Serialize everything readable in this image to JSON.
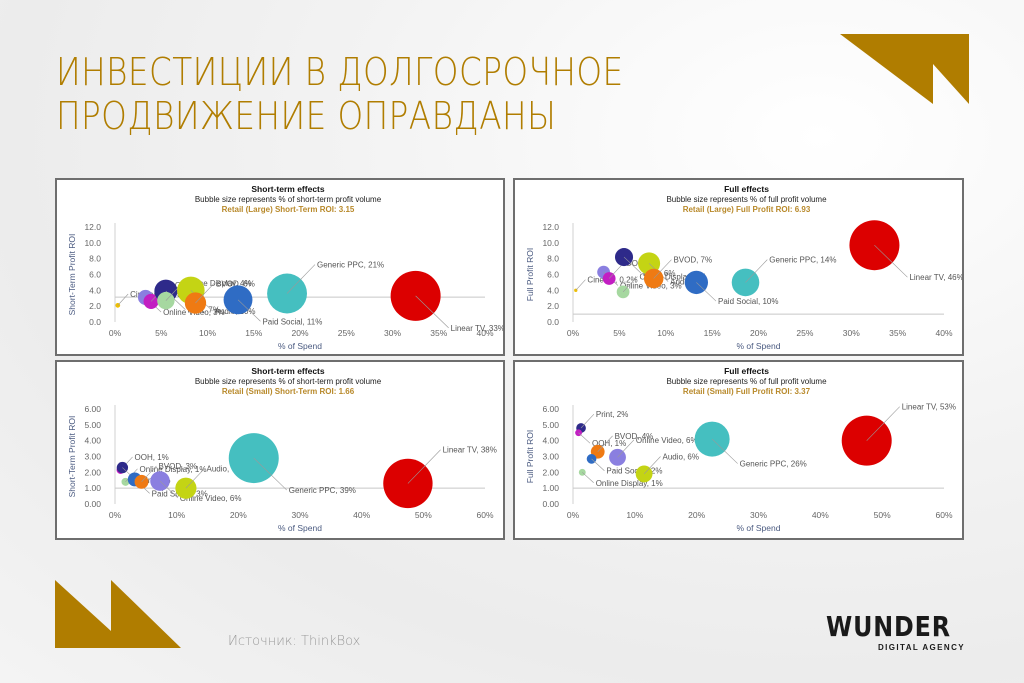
{
  "page": {
    "title_lines": [
      "ИНВЕСТИЦИИ В ДОЛГОСРОЧНОЕ",
      "ПРОДВИЖЕНИЕ ОПРАВДАНЫ"
    ],
    "source": "Источник: ThinkBox",
    "logo": {
      "main": "WUNDER",
      "sub": "DIGITAL AGENCY"
    },
    "accent_color": "#b07d00"
  },
  "chart_data": [
    {
      "type": "scatter",
      "variant": "bubble",
      "title": "Short-term effects",
      "subtitle": "Bubble size represents % of short-term profit volume",
      "highlight": "Retail (Large) Short-Term ROI: 3.15",
      "xlabel": "% of Spend",
      "ylabel": "Short-Term Profit ROI",
      "xlim": [
        0,
        40
      ],
      "ylim": [
        0,
        12
      ],
      "xticks": [
        "0%",
        "5%",
        "10%",
        "15%",
        "20%",
        "25%",
        "30%",
        "35%",
        "40%"
      ],
      "yticks": [
        "0.0",
        "2.0",
        "4.0",
        "6.0",
        "8.0",
        "10.0",
        "12.0"
      ],
      "ref_line_y": 3.15,
      "points": [
        {
          "label": "Cinema, 0.3%",
          "x": 0.3,
          "y": 2.1,
          "size": 0.3,
          "color": "#f0c000"
        },
        {
          "label": "Online Video, 3%",
          "x": 3.3,
          "y": 3.1,
          "size": 3,
          "color": "#8a7fe0"
        },
        {
          "label": "OOH, 3%",
          "x": 3.9,
          "y": 2.6,
          "size": 3,
          "color": "#c21fc2"
        },
        {
          "label": "Print, 7%",
          "x": 5.5,
          "y": 3.9,
          "size": 7,
          "color": "#2e2a8a"
        },
        {
          "label": "Online Display, 4%",
          "x": 5.5,
          "y": 2.7,
          "size": 4,
          "color": "#a6d8a0"
        },
        {
          "label": "Audio, 10%",
          "x": 8.2,
          "y": 4.0,
          "size": 10,
          "color": "#c4d414"
        },
        {
          "label": "BVOD, 6%",
          "x": 8.7,
          "y": 2.4,
          "size": 6,
          "color": "#ef7a13"
        },
        {
          "label": "Paid Social, 11%",
          "x": 13.3,
          "y": 2.8,
          "size": 11,
          "color": "#2f6cc4"
        },
        {
          "label": "Generic PPC, 21%",
          "x": 18.6,
          "y": 3.6,
          "size": 21,
          "color": "#45bfc0"
        },
        {
          "label": "Linear TV, 33%",
          "x": 32.5,
          "y": 3.3,
          "size": 33,
          "color": "#dc0000"
        }
      ]
    },
    {
      "type": "scatter",
      "variant": "bubble",
      "title": "Full effects",
      "subtitle": "Bubble size represents % of full profit volume",
      "highlight": "Retail (Large) Full Profit ROI: 6.93",
      "xlabel": "% of Spend",
      "ylabel": "Full Profit ROI",
      "xlim": [
        0,
        40
      ],
      "ylim": [
        0,
        12
      ],
      "xticks": [
        "0%",
        "5%",
        "10%",
        "15%",
        "20%",
        "25%",
        "30%",
        "35%",
        "40%"
      ],
      "yticks": [
        "0.0",
        "2.0",
        "4.0",
        "6.0",
        "8.0",
        "10.0",
        "12.0"
      ],
      "ref_line_y": 1.0,
      "points": [
        {
          "label": "Cinema, 0.2%",
          "x": 0.3,
          "y": 4.0,
          "size": 0.2,
          "color": "#f0c000"
        },
        {
          "label": "Online Video, 3%",
          "x": 3.3,
          "y": 6.3,
          "size": 3,
          "color": "#8a7fe0"
        },
        {
          "label": "OOH, 3%",
          "x": 3.9,
          "y": 5.5,
          "size": 3,
          "color": "#c21fc2"
        },
        {
          "label": "Print, 6%",
          "x": 5.5,
          "y": 8.2,
          "size": 6,
          "color": "#2e2a8a"
        },
        {
          "label": "Online Display, 3%",
          "x": 5.4,
          "y": 3.8,
          "size": 3,
          "color": "#a6d8a0"
        },
        {
          "label": "Audio, 9%",
          "x": 8.2,
          "y": 7.4,
          "size": 9,
          "color": "#c4d414"
        },
        {
          "label": "BVOD, 7%",
          "x": 8.7,
          "y": 5.5,
          "size": 7,
          "color": "#ef7a13"
        },
        {
          "label": "Paid Social, 10%",
          "x": 13.3,
          "y": 5.0,
          "size": 10,
          "color": "#2f6cc4"
        },
        {
          "label": "Generic PPC, 14%",
          "x": 18.6,
          "y": 5.0,
          "size": 14,
          "color": "#45bfc0"
        },
        {
          "label": "Linear TV, 46%",
          "x": 32.5,
          "y": 9.7,
          "size": 46,
          "color": "#dc0000"
        }
      ]
    },
    {
      "type": "scatter",
      "variant": "bubble",
      "title": "Short-term effects",
      "subtitle": "Bubble size represents % of short-term profit volume",
      "highlight": "Retail (Small) Short-Term ROI: 1.66",
      "xlabel": "% of Spend",
      "ylabel": "Short-Term Profit ROI",
      "xlim": [
        0,
        60
      ],
      "ylim": [
        0,
        6
      ],
      "xticks": [
        "0%",
        "10%",
        "20%",
        "30%",
        "40%",
        "50%",
        "60%"
      ],
      "yticks": [
        "0.00",
        "1.00",
        "2.00",
        "3.00",
        "4.00",
        "5.00",
        "6.00"
      ],
      "ref_line_y": 1.0,
      "points": [
        {
          "label": "OOH, 1%",
          "x": 0.9,
          "y": 2.15,
          "size": 1,
          "color": "#c21fc2"
        },
        {
          "label": "Print, 2%",
          "x": 1.2,
          "y": 2.3,
          "size": 2,
          "color": "#2e2a8a"
        },
        {
          "label": "Online Display, 1%",
          "x": 1.7,
          "y": 1.4,
          "size": 1,
          "color": "#a6d8a0"
        },
        {
          "label": "Paid Social, 3%",
          "x": 3.2,
          "y": 1.55,
          "size": 3,
          "color": "#2f6cc4"
        },
        {
          "label": "BVOD, 3%",
          "x": 4.3,
          "y": 1.4,
          "size": 3,
          "color": "#ef7a13"
        },
        {
          "label": "Online Video, 6%",
          "x": 7.3,
          "y": 1.45,
          "size": 6,
          "color": "#8a7fe0"
        },
        {
          "label": "Audio, 7%",
          "x": 11.5,
          "y": 1.0,
          "size": 7,
          "color": "#c4d414"
        },
        {
          "label": "Generic PPC, 39%",
          "x": 22.5,
          "y": 2.9,
          "size": 39,
          "color": "#45bfc0"
        },
        {
          "label": "Linear TV, 38%",
          "x": 47.5,
          "y": 1.3,
          "size": 38,
          "color": "#dc0000"
        }
      ]
    },
    {
      "type": "scatter",
      "variant": "bubble",
      "title": "Full effects",
      "subtitle": "Bubble size represents % of full profit volume",
      "highlight": "Retail (Small) Full Profit ROI: 3.37",
      "xlabel": "% of Spend",
      "ylabel": "Full Profit ROI",
      "xlim": [
        0,
        60
      ],
      "ylim": [
        0,
        6
      ],
      "xticks": [
        "0%",
        "10%",
        "20%",
        "30%",
        "40%",
        "50%",
        "60%"
      ],
      "yticks": [
        "0.00",
        "1.00",
        "2.00",
        "3.00",
        "4.00",
        "5.00",
        "6.00"
      ],
      "ref_line_y": 1.0,
      "points": [
        {
          "label": "Print, 2%",
          "x": 1.3,
          "y": 4.8,
          "size": 2,
          "color": "#2e2a8a"
        },
        {
          "label": "OOH, 1%",
          "x": 0.9,
          "y": 4.5,
          "size": 1,
          "color": "#c21fc2"
        },
        {
          "label": "BVOD, 4%",
          "x": 4.0,
          "y": 3.3,
          "size": 4,
          "color": "#ef7a13"
        },
        {
          "label": "Paid Social, 2%",
          "x": 3.0,
          "y": 2.85,
          "size": 2,
          "color": "#2f6cc4"
        },
        {
          "label": "Online Video, 6%",
          "x": 7.2,
          "y": 2.95,
          "size": 6,
          "color": "#8a7fe0"
        },
        {
          "label": "Online Display, 1%",
          "x": 1.5,
          "y": 2.0,
          "size": 1,
          "color": "#a6d8a0"
        },
        {
          "label": "Audio, 6%",
          "x": 11.5,
          "y": 1.9,
          "size": 6,
          "color": "#c4d414"
        },
        {
          "label": "Generic PPC, 26%",
          "x": 22.5,
          "y": 4.1,
          "size": 26,
          "color": "#45bfc0"
        },
        {
          "label": "Linear TV, 53%",
          "x": 47.5,
          "y": 4.0,
          "size": 53,
          "color": "#dc0000"
        }
      ]
    }
  ]
}
